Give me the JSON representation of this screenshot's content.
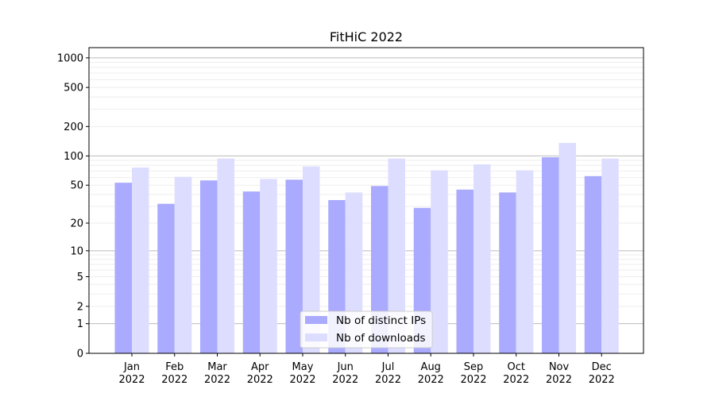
{
  "chart_data": {
    "type": "bar",
    "title": "FitHiC 2022",
    "xlabel": "",
    "ylabel": "",
    "yscale": "log(1+y)",
    "ylim": [
      0,
      1270
    ],
    "yticks": [
      0,
      1,
      2,
      5,
      10,
      20,
      50,
      100,
      200,
      500,
      1000
    ],
    "grid": true,
    "legend_position": "bottom-center",
    "categories": [
      "Jan\n2022",
      "Feb\n2022",
      "Mar\n2022",
      "Apr\n2022",
      "May\n2022",
      "Jun\n2022",
      "Jul\n2022",
      "Aug\n2022",
      "Sep\n2022",
      "Oct\n2022",
      "Nov\n2022",
      "Dec\n2022"
    ],
    "series": [
      {
        "name": "Nb of distinct IPs",
        "color": "#aaaaff",
        "values": [
          53,
          32,
          56,
          43,
          57,
          35,
          49,
          29,
          45,
          42,
          97,
          62
        ]
      },
      {
        "name": "Nb of downloads",
        "color": "#ddddff",
        "values": [
          76,
          61,
          94,
          58,
          78,
          42,
          94,
          71,
          82,
          71,
          136,
          94
        ]
      }
    ]
  }
}
